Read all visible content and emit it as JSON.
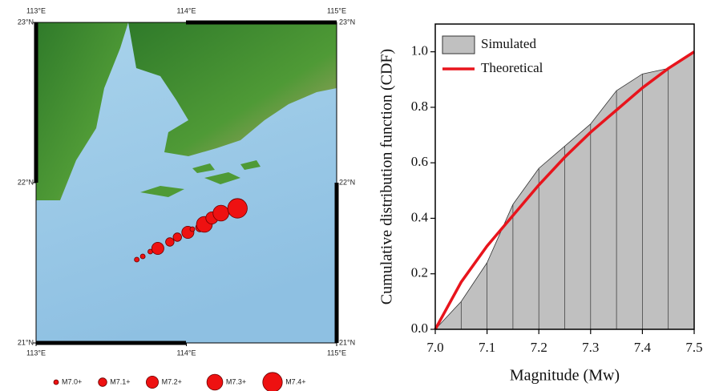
{
  "chart_data": [
    {
      "type": "map",
      "xlim": [
        113,
        115
      ],
      "ylim": [
        21,
        23
      ],
      "xticks": [
        {
          "value": 113,
          "label": "113°E"
        },
        {
          "value": 114,
          "label": "114°E"
        },
        {
          "value": 115,
          "label": "115°E"
        }
      ],
      "yticks": [
        {
          "value": 21,
          "label": "21°N"
        },
        {
          "value": 22,
          "label": "22°N"
        },
        {
          "value": 23,
          "label": "23°N"
        }
      ],
      "x": [
        113.67,
        113.71,
        113.76,
        113.81,
        113.89,
        113.94,
        114.01,
        114.04,
        114.09,
        114.12,
        114.17,
        114.23,
        114.34
      ],
      "values": [
        21.52,
        21.54,
        21.57,
        21.59,
        21.63,
        21.66,
        21.69,
        21.71,
        21.72,
        21.74,
        21.78,
        21.81,
        21.84
      ],
      "sizes": [
        7.0,
        7.0,
        7.0,
        7.2,
        7.1,
        7.1,
        7.2,
        7.0,
        7.1,
        7.3,
        7.2,
        7.3,
        7.4
      ],
      "color": "#ee1111",
      "legend": {
        "labels": [
          "M7.0+",
          "M7.1+",
          "M7.2+",
          "M7.3+",
          "M7.4+"
        ],
        "sizes": [
          7.0,
          7.1,
          7.2,
          7.3,
          7.4
        ]
      }
    },
    {
      "type": "area",
      "x_label": "Magnitude (Mw)",
      "y_label": "Cumulative distribution function (CDF)",
      "xlim": [
        7.0,
        7.5
      ],
      "ylim": [
        0,
        1.1
      ],
      "xticks": [
        {
          "value": 7,
          "label": "7.0"
        },
        7.1,
        7.2,
        7.3,
        7.4,
        7.5
      ],
      "yticks": [
        {
          "value": 0,
          "label": "0.0"
        },
        0.2,
        0.4,
        0.6,
        0.8,
        {
          "value": 1,
          "label": "1.0"
        }
      ],
      "x": [
        7.0,
        7.05,
        7.1,
        7.15,
        7.2,
        7.25,
        7.3,
        7.35,
        7.4,
        7.45,
        7.5
      ],
      "series": [
        {
          "name": "Simulated",
          "type": "area",
          "color": "#c0c0c0",
          "values": [
            0,
            0.1,
            0.24,
            0.45,
            0.58,
            0.66,
            0.74,
            0.86,
            0.92,
            0.94,
            1.0
          ]
        },
        {
          "name": "Theoretical",
          "type": "line",
          "color": "#e8141c",
          "values": [
            0,
            0.17,
            0.3,
            0.41,
            0.52,
            0.62,
            0.71,
            0.79,
            0.87,
            0.94,
            1.0
          ]
        }
      ]
    }
  ]
}
